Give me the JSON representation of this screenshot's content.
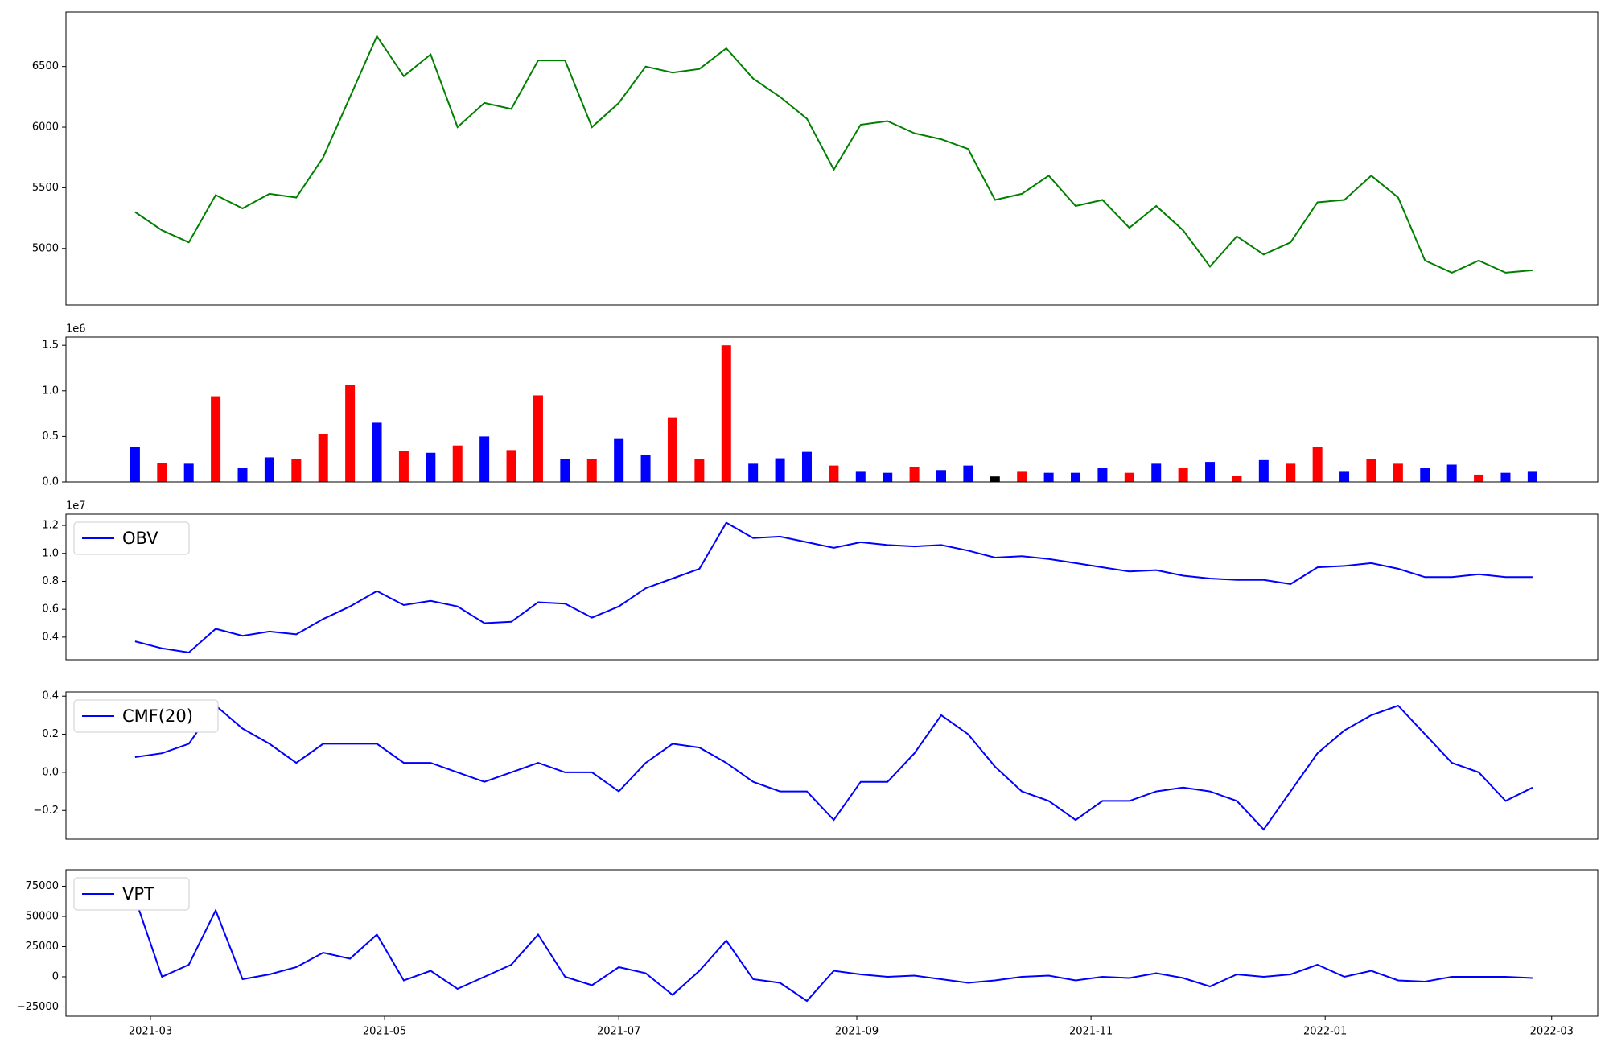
{
  "chart_data": {
    "type": "multi",
    "xlim": [
      "2021-02-07",
      "2022-03-13"
    ],
    "xticks": [
      "2021-03",
      "2021-05",
      "2021-07",
      "2021-09",
      "2021-11",
      "2022-01",
      "2022-03"
    ],
    "x": [
      "2021-02-25",
      "2021-03-04",
      "2021-03-11",
      "2021-03-18",
      "2021-03-25",
      "2021-04-01",
      "2021-04-08",
      "2021-04-15",
      "2021-04-22",
      "2021-04-29",
      "2021-05-06",
      "2021-05-13",
      "2021-05-20",
      "2021-05-27",
      "2021-06-03",
      "2021-06-10",
      "2021-06-17",
      "2021-06-24",
      "2021-07-01",
      "2021-07-08",
      "2021-07-15",
      "2021-07-22",
      "2021-07-29",
      "2021-08-05",
      "2021-08-12",
      "2021-08-19",
      "2021-08-26",
      "2021-09-02",
      "2021-09-09",
      "2021-09-16",
      "2021-09-23",
      "2021-09-30",
      "2021-10-07",
      "2021-10-14",
      "2021-10-21",
      "2021-10-28",
      "2021-11-04",
      "2021-11-11",
      "2021-11-18",
      "2021-11-25",
      "2021-12-02",
      "2021-12-09",
      "2021-12-16",
      "2021-12-23",
      "2021-12-30",
      "2022-01-06",
      "2022-01-13",
      "2022-01-20",
      "2022-01-27",
      "2022-02-03",
      "2022-02-10",
      "2022-02-17",
      "2022-02-24"
    ],
    "panels": [
      {
        "type": "line",
        "ylim": [
          4534,
          6949
        ],
        "yticks": [
          5000,
          5500,
          6000,
          6500
        ],
        "series": [
          {
            "color": "#008000",
            "values": [
              5300,
              5150,
              5050,
              5440,
              5330,
              5450,
              5420,
              5750,
              6250,
              6750,
              6420,
              6600,
              6000,
              6200,
              6150,
              6550,
              6550,
              6000,
              6200,
              6500,
              6450,
              6480,
              6650,
              6400,
              6250,
              6070,
              5650,
              6020,
              6050,
              5950,
              5900,
              5820,
              5400,
              5450,
              5600,
              5350,
              5400,
              5170,
              5350,
              5150,
              4850,
              5100,
              4950,
              5050,
              5380,
              5400,
              5600,
              5420,
              4900,
              4800,
              4900,
              4800,
              4820
            ]
          }
        ]
      },
      {
        "type": "bar",
        "ylim": [
          0,
          1590000
        ],
        "offset_label": "1e6",
        "yticks": [
          {
            "value": 0,
            "label": "0.0"
          },
          {
            "value": 500000,
            "label": "0.5"
          },
          {
            "value": 1000000,
            "label": "1.0"
          },
          {
            "value": 1500000,
            "label": "1.5"
          }
        ],
        "series": [
          {
            "values": [
              380000,
              210000,
              200000,
              940000,
              150000,
              270000,
              250000,
              530000,
              1060000,
              650000,
              340000,
              320000,
              400000,
              500000,
              350000,
              950000,
              250000,
              250000,
              480000,
              300000,
              710000,
              250000,
              1500000,
              200000,
              260000,
              330000,
              180000,
              120000,
              100000,
              160000,
              130000,
              180000,
              60000,
              120000,
              100000,
              100000,
              150000,
              100000,
              200000,
              150000,
              220000,
              70000,
              240000,
              200000,
              380000,
              120000,
              250000,
              200000,
              150000,
              190000,
              80000,
              100000,
              120000
            ],
            "colors": [
              "#0000ff",
              "#ff0000",
              "#0000ff",
              "#ff0000",
              "#0000ff",
              "#0000ff",
              "#ff0000",
              "#ff0000",
              "#ff0000",
              "#0000ff",
              "#ff0000",
              "#0000ff",
              "#ff0000",
              "#0000ff",
              "#ff0000",
              "#ff0000",
              "#0000ff",
              "#ff0000",
              "#0000ff",
              "#0000ff",
              "#ff0000",
              "#ff0000",
              "#ff0000",
              "#0000ff",
              "#0000ff",
              "#0000ff",
              "#ff0000",
              "#0000ff",
              "#0000ff",
              "#ff0000",
              "#0000ff",
              "#0000ff",
              "#000000",
              "#ff0000",
              "#0000ff",
              "#0000ff",
              "#0000ff",
              "#ff0000",
              "#0000ff",
              "#ff0000",
              "#0000ff",
              "#ff0000",
              "#0000ff",
              "#ff0000",
              "#ff0000",
              "#0000ff",
              "#ff0000",
              "#ff0000",
              "#0000ff",
              "#0000ff",
              "#ff0000",
              "#0000ff",
              "#0000ff"
            ]
          }
        ]
      },
      {
        "type": "line",
        "ylim": [
          2380000,
          12810000
        ],
        "offset_label": "1e7",
        "legend": "upper left",
        "yticks": [
          {
            "value": 4000000,
            "label": "0.4"
          },
          {
            "value": 6000000,
            "label": "0.6"
          },
          {
            "value": 8000000,
            "label": "0.8"
          },
          {
            "value": 10000000,
            "label": "1.0"
          },
          {
            "value": 12000000,
            "label": "1.2"
          }
        ],
        "series": [
          {
            "name": "OBV",
            "color": "#0000ff",
            "values": [
              3700000,
              3200000,
              2900000,
              4600000,
              4100000,
              4400000,
              4200000,
              5300000,
              6200000,
              7300000,
              6300000,
              6600000,
              6200000,
              5000000,
              5100000,
              6500000,
              6400000,
              5400000,
              6200000,
              7500000,
              8200000,
              8900000,
              12200000,
              11100000,
              11200000,
              10800000,
              10400000,
              10800000,
              10600000,
              10500000,
              10600000,
              10200000,
              9700000,
              9800000,
              9600000,
              9300000,
              9000000,
              8700000,
              8800000,
              8400000,
              8200000,
              8100000,
              8100000,
              7800000,
              9000000,
              9100000,
              9300000,
              8900000,
              8300000,
              8300000,
              8500000,
              8300000,
              8300000
            ]
          }
        ]
      },
      {
        "type": "line",
        "ylim": [
          -0.351,
          0.422
        ],
        "legend": "upper left",
        "yticks": [
          {
            "value": -0.2,
            "label": "−0.2"
          },
          {
            "value": 0,
            "label": "0.0"
          },
          0.2,
          0.4
        ],
        "series": [
          {
            "name": "CMF(20)",
            "color": "#0000ff",
            "values": [
              0.08,
              0.1,
              0.15,
              0.35,
              0.23,
              0.15,
              0.05,
              0.15,
              0.15,
              0.15,
              0.05,
              0.05,
              0.0,
              -0.05,
              0.0,
              0.05,
              0.0,
              0.0,
              -0.1,
              0.05,
              0.15,
              0.13,
              0.05,
              -0.05,
              -0.1,
              -0.1,
              -0.25,
              -0.05,
              -0.05,
              0.1,
              0.3,
              0.2,
              0.03,
              -0.1,
              -0.15,
              -0.25,
              -0.15,
              -0.15,
              -0.1,
              -0.08,
              -0.1,
              -0.15,
              -0.3,
              -0.1,
              0.1,
              0.22,
              0.3,
              0.35,
              0.2,
              0.05,
              0.0,
              -0.15,
              -0.08
            ]
          }
        ]
      },
      {
        "type": "line",
        "ylim": [
          -32700,
          88700
        ],
        "legend": "upper left",
        "yticks": [
          {
            "value": -25000,
            "label": "−25000"
          },
          0,
          25000,
          50000,
          75000
        ],
        "series": [
          {
            "name": "VPT",
            "color": "#0000ff",
            "values": [
              65000,
              0,
              10000,
              55000,
              -2000,
              2000,
              8000,
              20000,
              15000,
              35000,
              -3000,
              5000,
              -10000,
              0,
              10000,
              35000,
              0,
              -7000,
              8000,
              3000,
              -15000,
              5000,
              30000,
              -2000,
              -5000,
              -20000,
              5000,
              2000,
              0,
              1000,
              -2000,
              -5000,
              -3000,
              0,
              1000,
              -3000,
              0,
              -1000,
              3000,
              -1000,
              -8000,
              2000,
              0,
              2000,
              10000,
              0,
              5000,
              -3000,
              -4000,
              0,
              0,
              0,
              -1000
            ]
          }
        ]
      }
    ]
  }
}
